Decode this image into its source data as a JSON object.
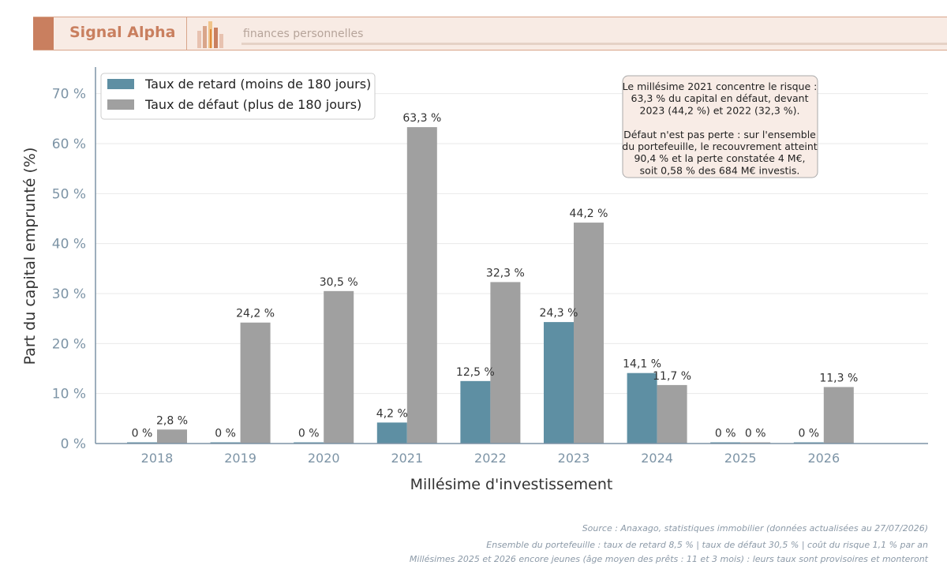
{
  "header": {
    "brand": "Signal Alpha",
    "tagline": "finances personnelles",
    "logo_icon": "bar-chart-logo-icon"
  },
  "chart_data": {
    "type": "bar",
    "categories": [
      "2018",
      "2019",
      "2020",
      "2021",
      "2022",
      "2023",
      "2024",
      "2025",
      "2026"
    ],
    "series": [
      {
        "name": "Taux de retard (moins de 180 jours)",
        "values": [
          0,
          0,
          0,
          4.2,
          12.5,
          24.3,
          14.1,
          0,
          0
        ],
        "labels": [
          "0 %",
          "0 %",
          "0 %",
          "4,2 %",
          "12,5 %",
          "24,3 %",
          "14,1 %",
          "0 %",
          "0 %"
        ],
        "color": "#5e8fa3"
      },
      {
        "name": "Taux de défaut (plus de 180 jours)",
        "values": [
          2.8,
          24.2,
          30.5,
          63.3,
          32.3,
          44.2,
          11.7,
          0,
          11.3
        ],
        "labels": [
          "2,8 %",
          "24,2 %",
          "30,5 %",
          "63,3 %",
          "32,3 %",
          "44,2 %",
          "11,7 %",
          "0 %",
          "11,3 %"
        ],
        "color": "#a0a0a0"
      }
    ],
    "xlabel": "Millésime d'investissement",
    "ylabel": "Part du capital emprunté (%)",
    "ylim": [
      0,
      75
    ],
    "yticks": [
      0,
      10,
      20,
      30,
      40,
      50,
      60,
      70
    ],
    "ytick_labels": [
      "0 %",
      "10 %",
      "20 %",
      "30 %",
      "40 %",
      "50 %",
      "60 %",
      "70 %"
    ],
    "grid": true,
    "legend_position": "top-left",
    "annotation": [
      "Le millésime 2021 concentre le risque :",
      "63,3 % du capital en défaut, devant",
      "2023 (44,2 %) et 2022 (32,3 %).",
      "",
      "Défaut n'est pas perte : sur l'ensemble",
      "du portefeuille, le recouvrement atteint",
      "90,4 % et la perte constatée 4 M€,",
      "soit 0,58 % des 684 M€ investis."
    ]
  },
  "footer": {
    "source": "Source : Anaxago, statistiques immobilier (données actualisées au 27/07/2026)",
    "line1": "Ensemble du portefeuille : taux de retard 8,5 %   |   taux de défaut 30,5 %   |   coût du risque 1,1 % par an",
    "line2": "Millésimes 2025 et 2026 encore jeunes (âge moyen des prêts : 11 et 3 mois) : leurs taux sont provisoires et monteront"
  }
}
